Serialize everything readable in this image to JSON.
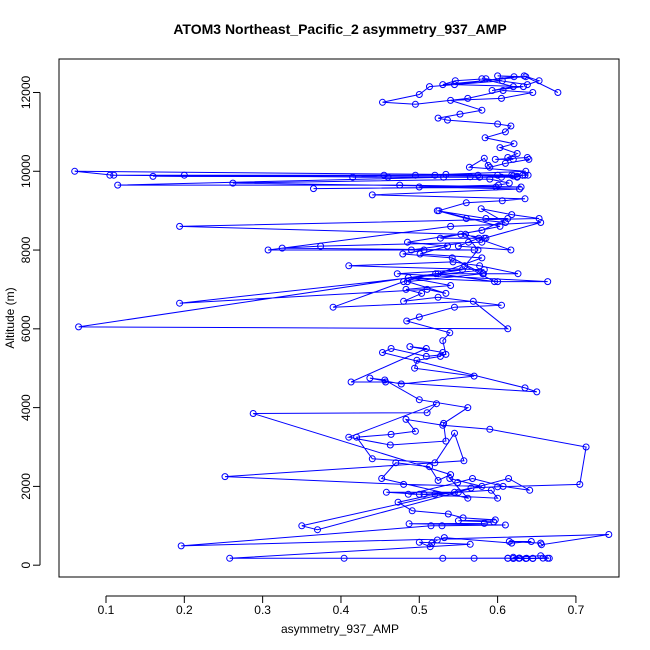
{
  "chart_data": {
    "type": "scatter",
    "title": "ATOM3 Northeast_Pacific_2 asymmetry_937_AMP",
    "xlabel": "asymmetry_937_AMP",
    "ylabel": "Altitude (m)",
    "xlim": [
      0.04,
      0.755
    ],
    "ylim": [
      -300,
      12850
    ],
    "x_ticks": [
      0.1,
      0.2,
      0.3,
      0.4,
      0.5,
      0.6,
      0.7
    ],
    "y_ticks": [
      0,
      2000,
      4000,
      6000,
      8000,
      10000,
      12000
    ],
    "grid": false,
    "legend": "none",
    "color": "#0000ff",
    "style": "lines+markers",
    "series": [
      {
        "x": [
          0.613,
          0.62,
          0.658,
          0.645,
          0.613,
          0.627,
          0.637,
          0.664,
          0.628,
          0.636,
          0.645,
          0.666,
          0.655,
          0.62,
          0.628,
          0.53,
          0.404,
          0.57,
          0.258,
          0.565,
          0.5,
          0.514,
          0.516,
          0.523,
          0.532,
          0.618,
          0.643,
          0.615,
          0.655,
          0.656,
          0.742,
          0.196,
          0.515,
          0.529,
          0.61,
          0.487,
          0.583,
          0.595,
          0.55,
          0.597,
          0.556,
          0.537,
          0.491,
          0.473,
          0.52,
          0.55,
          0.592,
          0.6,
          0.5,
          0.458,
          0.545,
          0.506,
          0.486,
          0.549,
          0.568,
          0.607,
          0.641,
          0.614,
          0.37,
          0.35,
          0.566,
          0.6,
          0.705,
          0.713,
          0.59,
          0.53,
          0.483,
          0.495,
          0.464,
          0.42,
          0.44,
          0.52,
          0.545,
          0.557,
          0.252,
          0.48,
          0.58,
          0.539,
          0.562,
          0.452,
          0.47,
          0.513,
          0.524,
          0.54,
          0.288,
          0.51,
          0.522,
          0.41,
          0.463,
          0.534,
          0.531,
          0.562,
          0.5,
          0.456,
          0.437,
          0.477,
          0.57,
          0.494,
          0.497,
          0.527,
          0.53,
          0.488,
          0.509,
          0.413,
          0.457,
          0.65,
          0.635,
          0.453,
          0.464,
          0.509,
          0.534,
          0.53,
          0.539,
          0.484,
          0.5,
          0.545,
          0.605,
          0.524,
          0.48,
          0.503,
          0.483,
          0.54,
          0.486,
          0.6,
          0.664,
          0.472,
          0.555,
          0.065,
          0.613,
          0.569,
          0.39,
          0.48,
          0.521,
          0.582,
          0.626,
          0.577,
          0.543,
          0.41,
          0.583,
          0.194,
          0.51,
          0.534,
          0.485,
          0.581,
          0.542,
          0.479,
          0.506,
          0.49,
          0.563,
          0.576,
          0.55,
          0.617,
          0.559,
          0.575,
          0.558,
          0.596,
          0.524,
          0.58,
          0.501,
          0.536,
          0.485,
          0.58,
          0.613,
          0.585,
          0.523,
          0.56,
          0.61,
          0.579,
          0.618,
          0.653,
          0.194,
          0.553,
          0.585,
          0.58,
          0.374,
          0.325,
          0.57,
          0.307,
          0.54,
          0.655,
          0.583,
          0.527,
          0.603,
          0.525,
          0.56,
          0.606,
          0.635,
          0.44,
          0.628,
          0.5,
          0.601,
          0.615,
          0.59,
          0.262,
          0.598,
          0.365,
          0.63,
          0.475,
          0.115,
          0.531,
          0.605,
          0.625,
          0.632,
          0.11,
          0.06,
          0.639,
          0.2,
          0.6,
          0.52,
          0.62,
          0.577,
          0.565,
          0.16,
          0.575,
          0.635,
          0.618,
          0.632,
          0.625,
          0.415,
          0.455,
          0.46,
          0.105,
          0.495,
          0.534,
          0.636,
          0.564,
          0.583,
          0.588,
          0.59,
          0.61,
          0.64,
          0.638,
          0.597,
          0.62,
          0.613,
          0.625,
          0.603,
          0.621,
          0.584,
          0.61,
          0.617,
          0.6,
          0.536,
          0.524,
          0.552,
          0.58,
          0.54,
          0.605,
          0.645,
          0.607,
          0.562,
          0.495,
          0.453,
          0.5,
          0.513,
          0.606,
          0.58,
          0.62,
          0.593,
          0.633,
          0.545,
          0.621,
          0.6,
          0.636,
          0.53,
          0.546,
          0.585,
          0.638,
          0.653,
          0.634,
          0.677
        ],
        "y": [
          175,
          170,
          180,
          175,
          175,
          175,
          175,
          175,
          175,
          170,
          170,
          175,
          240,
          200,
          180,
          175,
          175,
          175,
          175,
          530,
          580,
          470,
          560,
          640,
          700,
          560,
          600,
          600,
          560,
          520,
          780,
          490,
          1000,
          1000,
          1020,
          1050,
          1060,
          1100,
          1130,
          1150,
          1200,
          1300,
          1380,
          1600,
          1800,
          1850,
          1900,
          1700,
          1800,
          1850,
          1850,
          1800,
          1800,
          2100,
          2200,
          2000,
          1900,
          2200,
          900,
          1000,
          1960,
          1990,
          2050,
          3000,
          3450,
          3550,
          3700,
          3400,
          3320,
          3250,
          2700,
          2600,
          3350,
          2650,
          2250,
          2050,
          2000,
          2200,
          1700,
          2200,
          2600,
          2500,
          2150,
          2300,
          3850,
          3870,
          4100,
          3250,
          3050,
          3150,
          3600,
          4000,
          4200,
          4700,
          4750,
          4600,
          4800,
          5000,
          5200,
          5300,
          5400,
          5550,
          5500,
          4650,
          4650,
          4400,
          4500,
          5400,
          5500,
          5300,
          5350,
          5700,
          5900,
          6200,
          6300,
          6550,
          6600,
          6800,
          6700,
          6900,
          7000,
          7100,
          7300,
          7200,
          7200,
          7400,
          7500,
          6050,
          6000,
          6700,
          6550,
          7200,
          7400,
          7400,
          7400,
          7600,
          7700,
          7600,
          7500,
          6650,
          7000,
          6900,
          7200,
          7400,
          7800,
          7900,
          8000,
          8000,
          8200,
          8300,
          8100,
          8000,
          8400,
          8000,
          7600,
          7200,
          7400,
          7800,
          7900,
          8100,
          8200,
          8500,
          8800,
          8800,
          9000,
          8800,
          8700,
          9050,
          8900,
          8800,
          8600,
          8400,
          8300,
          8200,
          8100,
          8050,
          8000,
          8000,
          8600,
          8700,
          8300,
          8300,
          8600,
          9000,
          9200,
          9250,
          9300,
          9400,
          9550,
          9600,
          9650,
          9700,
          9800,
          9700,
          9600,
          9560,
          9600,
          9650,
          9650,
          9850,
          9850,
          9870,
          9900,
          9900,
          10000,
          9900,
          9900,
          9900,
          9900,
          9880,
          9850,
          9860,
          9870,
          9900,
          9900,
          9900,
          9900,
          9850,
          9850,
          9900,
          9850,
          9900,
          9900,
          9920,
          10000,
          10100,
          10330,
          10150,
          10100,
          10200,
          10300,
          10350,
          10300,
          10300,
          10350,
          10450,
          10600,
          10700,
          10850,
          11000,
          11150,
          11200,
          11300,
          11350,
          11450,
          11550,
          11800,
          11850,
          12000,
          12050,
          11850,
          11700,
          11750,
          11950,
          12150,
          12300,
          12350,
          12150,
          12050,
          12150,
          12200,
          12400,
          12420,
          12400,
          12200,
          12300,
          12350,
          12200,
          12300,
          12420,
          12000
        ]
      }
    ]
  }
}
